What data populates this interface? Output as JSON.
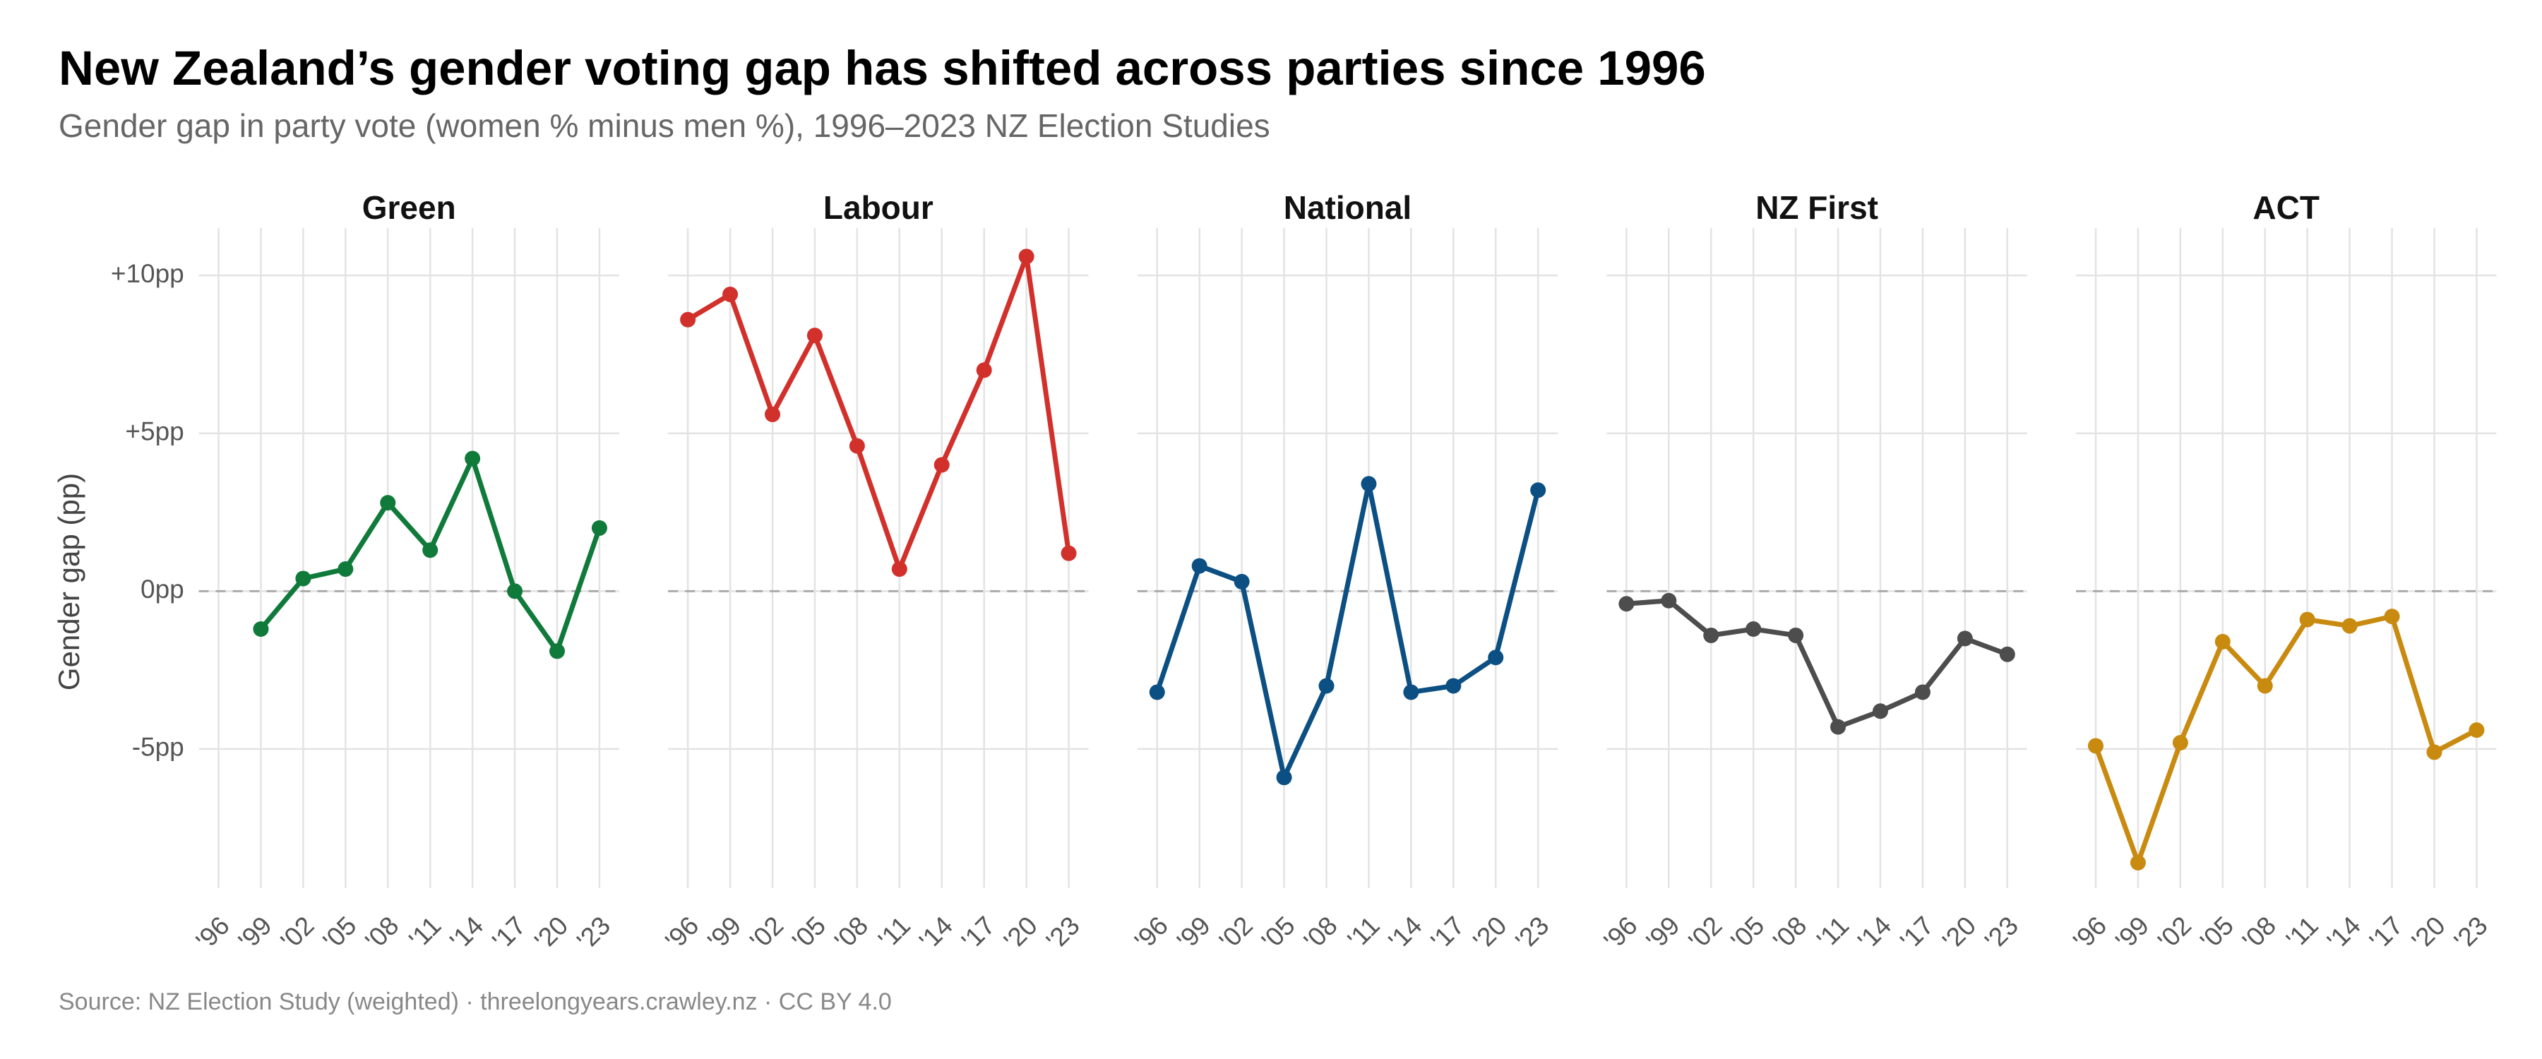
{
  "chart_data": {
    "type": "line",
    "title": "New Zealand’s gender voting gap has shifted across parties since 1996",
    "subtitle": "Gender gap in party vote (women % minus men %), 1996–2023 NZ Election Studies",
    "y_label": "Gender gap (pp)",
    "caption": "Source: NZ Election Study (weighted) · threelongyears.crawley.nz · CC BY 4.0",
    "x": [
      1996,
      1999,
      2002,
      2005,
      2008,
      2011,
      2014,
      2017,
      2020,
      2023
    ],
    "xlim": [
      1994.6,
      2024.4
    ],
    "xticks": [
      {
        "value": 1996,
        "label": "'96"
      },
      {
        "value": 1999,
        "label": "'99"
      },
      {
        "value": 2002,
        "label": "'02"
      },
      {
        "value": 2005,
        "label": "'05"
      },
      {
        "value": 2008,
        "label": "'08"
      },
      {
        "value": 2011,
        "label": "'11"
      },
      {
        "value": 2014,
        "label": "'14"
      },
      {
        "value": 2017,
        "label": "'17"
      },
      {
        "value": 2020,
        "label": "'20"
      },
      {
        "value": 2023,
        "label": "'23"
      }
    ],
    "ylim": [
      -9.4,
      11.5
    ],
    "yticks": [
      {
        "value": -5,
        "label": "-5pp"
      },
      {
        "value": 0,
        "label": "0pp"
      },
      {
        "value": 5,
        "label": "+5pp"
      },
      {
        "value": 10,
        "label": "+10pp"
      }
    ],
    "reference_line": 0,
    "grid": true,
    "series": [
      {
        "name": "Green",
        "color": "#0f7a3a",
        "values": [
          null,
          -1.2,
          0.4,
          0.7,
          2.8,
          1.3,
          4.2,
          0.0,
          -1.9,
          2.0
        ]
      },
      {
        "name": "Labour",
        "color": "#d2302b",
        "values": [
          8.6,
          9.4,
          5.6,
          8.1,
          4.6,
          0.7,
          4.0,
          7.0,
          10.6,
          1.2
        ]
      },
      {
        "name": "National",
        "color": "#0b4f83",
        "values": [
          -3.2,
          0.8,
          0.3,
          -5.9,
          -3.0,
          3.4,
          -3.2,
          -3.0,
          -2.1,
          3.2
        ]
      },
      {
        "name": "NZ First",
        "color": "#4d4d4d",
        "values": [
          -0.4,
          -0.3,
          -1.4,
          -1.2,
          -1.4,
          -4.3,
          -3.8,
          -3.2,
          -1.5,
          -2.0
        ]
      },
      {
        "name": "ACT",
        "color": "#c98a10",
        "values": [
          -4.9,
          -8.6,
          -4.8,
          -1.6,
          -3.0,
          -0.9,
          -1.1,
          -0.8,
          -5.1,
          -4.4
        ]
      }
    ]
  }
}
